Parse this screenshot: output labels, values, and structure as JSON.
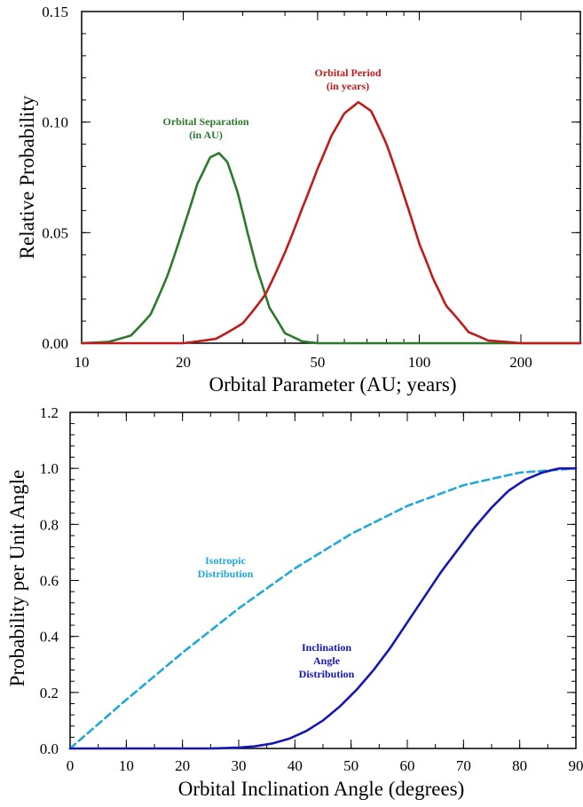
{
  "chart_data": [
    {
      "type": "line",
      "xlabel": "Orbital Parameter (AU; years)",
      "ylabel": "Relative Probability",
      "x_scale": "log",
      "xlim": [
        10,
        300
      ],
      "ylim": [
        0,
        0.15
      ],
      "x_ticks": [
        10,
        20,
        50,
        100,
        200
      ],
      "x_tick_labels": [
        "10",
        "20",
        "50",
        "100",
        "200"
      ],
      "y_ticks": [
        0,
        0.05,
        0.1,
        0.15
      ],
      "y_tick_labels": [
        "0.00",
        "0.05",
        "0.10",
        "0.15"
      ],
      "grid": false,
      "series": [
        {
          "name": "Orbital Separation (in AU)",
          "color": "#2b7a2b",
          "style": "solid",
          "label_lines": [
            "Orbital Separation",
            "(in AU)"
          ],
          "x": [
            10,
            12,
            14,
            16,
            18,
            20,
            22,
            24,
            25.5,
            27,
            29,
            31,
            33,
            36,
            40,
            45,
            50
          ],
          "y": [
            0.0,
            0.0006,
            0.0035,
            0.013,
            0.031,
            0.052,
            0.072,
            0.084,
            0.086,
            0.082,
            0.068,
            0.05,
            0.034,
            0.016,
            0.0045,
            0.0008,
            0.0
          ]
        },
        {
          "name": "Orbital Period (in years)",
          "color": "#c01a1a",
          "style": "solid",
          "label_lines": [
            "Orbital Period",
            "(in years)"
          ],
          "x": [
            20,
            25,
            30,
            35,
            40,
            45,
            50,
            55,
            60,
            66,
            72,
            80,
            90,
            100,
            110,
            120,
            140,
            160,
            200,
            300
          ],
          "y": [
            0.0,
            0.002,
            0.009,
            0.022,
            0.041,
            0.061,
            0.079,
            0.094,
            0.104,
            0.109,
            0.105,
            0.09,
            0.067,
            0.045,
            0.029,
            0.017,
            0.005,
            0.0012,
            0.0,
            0.0
          ]
        }
      ]
    },
    {
      "type": "line",
      "xlabel": "Orbital Inclination Angle (degrees)",
      "ylabel": "Probability per Unit Angle",
      "xlim": [
        0,
        90
      ],
      "ylim": [
        0,
        1.2
      ],
      "x_ticks": [
        0,
        10,
        20,
        30,
        40,
        50,
        60,
        70,
        80,
        90
      ],
      "x_tick_labels": [
        "0",
        "10",
        "20",
        "30",
        "40",
        "50",
        "60",
        "70",
        "80",
        "90"
      ],
      "y_ticks": [
        0,
        0.2,
        0.4,
        0.6,
        0.8,
        1.0,
        1.2
      ],
      "y_tick_labels": [
        "0.0",
        "0.2",
        "0.4",
        "0.6",
        "0.8",
        "1.0",
        "1.2"
      ],
      "grid": false,
      "series": [
        {
          "name": "Isotropic Distribution",
          "color": "#1fa8dc",
          "style": "dashed",
          "label_lines": [
            "Isotropic",
            "Distribution"
          ],
          "x": [
            0,
            10,
            20,
            30,
            40,
            50,
            60,
            70,
            80,
            90
          ],
          "y": [
            0.0,
            0.174,
            0.342,
            0.5,
            0.643,
            0.766,
            0.866,
            0.94,
            0.985,
            1.0
          ]
        },
        {
          "name": "Inclination Angle Distribution",
          "color": "#1515b8",
          "style": "solid",
          "label_lines": [
            "Inclination",
            "Angle",
            "Distribution"
          ],
          "x": [
            0,
            25,
            30,
            33,
            36,
            39,
            42,
            45,
            48,
            51,
            54,
            57,
            60,
            63,
            66,
            69,
            72,
            75,
            78,
            81,
            84,
            87,
            90
          ],
          "y": [
            0.0,
            0.0,
            0.003,
            0.008,
            0.018,
            0.035,
            0.062,
            0.1,
            0.15,
            0.21,
            0.28,
            0.36,
            0.45,
            0.54,
            0.63,
            0.71,
            0.79,
            0.86,
            0.92,
            0.96,
            0.985,
            1.0,
            1.0
          ]
        }
      ]
    }
  ]
}
